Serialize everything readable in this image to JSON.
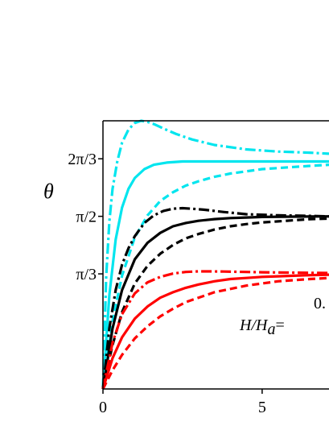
{
  "chart_data": {
    "type": "line",
    "ylabel": "θ",
    "xlabel": "",
    "xlim": [
      0,
      7.1
    ],
    "ylim": [
      0,
      2.44
    ],
    "x_ticks": [
      {
        "value": 0,
        "label": "0"
      },
      {
        "value": 5,
        "label": "5"
      }
    ],
    "y_ticks": [
      {
        "value": 1.0472,
        "label": "π/3"
      },
      {
        "value": 1.5708,
        "label": "π/2"
      },
      {
        "value": 2.0944,
        "label": "2π/3"
      }
    ],
    "annotations": {
      "ratio_label": "H/H",
      "ratio_subscript": "a",
      "ratio_equals": "=",
      "partial_value": "0."
    },
    "colors": {
      "cyan": "#00e5ee",
      "black": "#000000",
      "red": "#ff0000"
    },
    "series": [
      {
        "color": "cyan",
        "style": "dashdot",
        "x": [
          0,
          0.1,
          0.2,
          0.3,
          0.45,
          0.6,
          0.8,
          1.0,
          1.2,
          1.4,
          1.6,
          1.9,
          2.3,
          2.8,
          3.5,
          4.5,
          5.5,
          6.5,
          7.1
        ],
        "y": [
          0,
          1.02,
          1.52,
          1.82,
          2.07,
          2.24,
          2.36,
          2.42,
          2.44,
          2.43,
          2.41,
          2.37,
          2.32,
          2.27,
          2.22,
          2.18,
          2.16,
          2.15,
          2.14
        ]
      },
      {
        "color": "cyan",
        "style": "solid",
        "x": [
          0,
          0.2,
          0.4,
          0.6,
          0.8,
          1.0,
          1.3,
          1.6,
          2.0,
          2.5,
          3.0,
          4.0,
          5.0,
          6.0,
          7.1
        ],
        "y": [
          0,
          0.85,
          1.36,
          1.65,
          1.82,
          1.92,
          2.0,
          2.04,
          2.06,
          2.07,
          2.07,
          2.07,
          2.07,
          2.07,
          2.07
        ]
      },
      {
        "color": "cyan",
        "style": "dashed",
        "x": [
          0,
          0.3,
          0.6,
          1.0,
          1.4,
          1.8,
          2.2,
          2.6,
          3.0,
          3.5,
          4.0,
          4.5,
          5.0,
          5.5,
          6.0,
          6.5,
          7.1
        ],
        "y": [
          0,
          0.62,
          1.03,
          1.38,
          1.58,
          1.71,
          1.79,
          1.85,
          1.89,
          1.93,
          1.96,
          1.98,
          2.0,
          2.01,
          2.02,
          2.03,
          2.04
        ]
      },
      {
        "color": "black",
        "style": "dashdot",
        "x": [
          0,
          0.2,
          0.4,
          0.6,
          0.8,
          1.0,
          1.3,
          1.6,
          1.9,
          2.2,
          2.5,
          2.8,
          3.2,
          3.8,
          4.5,
          5.5,
          6.5,
          7.1
        ],
        "y": [
          0,
          0.55,
          0.9,
          1.13,
          1.28,
          1.39,
          1.51,
          1.58,
          1.62,
          1.64,
          1.645,
          1.64,
          1.63,
          1.61,
          1.59,
          1.58,
          1.575,
          1.57
        ]
      },
      {
        "color": "black",
        "style": "solid",
        "x": [
          0,
          0.3,
          0.6,
          1.0,
          1.4,
          1.8,
          2.2,
          2.6,
          3.0,
          3.5,
          4.0,
          4.5,
          5.0,
          6.0,
          7.1
        ],
        "y": [
          0,
          0.55,
          0.9,
          1.18,
          1.33,
          1.42,
          1.48,
          1.51,
          1.53,
          1.545,
          1.555,
          1.56,
          1.565,
          1.568,
          1.57
        ]
      },
      {
        "color": "black",
        "style": "dashed",
        "x": [
          0,
          0.3,
          0.6,
          1.0,
          1.4,
          1.8,
          2.2,
          2.6,
          3.0,
          3.5,
          4.0,
          4.5,
          5.0,
          5.5,
          6.0,
          6.5,
          7.1
        ],
        "y": [
          0,
          0.4,
          0.7,
          0.96,
          1.12,
          1.23,
          1.31,
          1.37,
          1.41,
          1.45,
          1.48,
          1.5,
          1.515,
          1.525,
          1.535,
          1.545,
          1.55
        ]
      },
      {
        "color": "red",
        "style": "dashdot",
        "x": [
          0,
          0.3,
          0.6,
          1.0,
          1.4,
          1.8,
          2.2,
          2.6,
          3.0,
          3.4,
          3.8,
          4.2,
          5.0,
          6.0,
          7.1
        ],
        "y": [
          0,
          0.42,
          0.68,
          0.87,
          0.97,
          1.02,
          1.05,
          1.065,
          1.07,
          1.07,
          1.068,
          1.066,
          1.062,
          1.058,
          1.055
        ]
      },
      {
        "color": "red",
        "style": "solid",
        "x": [
          0,
          0.3,
          0.6,
          1.0,
          1.4,
          1.8,
          2.2,
          2.6,
          3.0,
          3.5,
          4.0,
          4.5,
          5.0,
          5.5,
          6.0,
          6.5,
          7.1
        ],
        "y": [
          0,
          0.28,
          0.47,
          0.64,
          0.75,
          0.83,
          0.88,
          0.92,
          0.95,
          0.98,
          1.0,
          1.01,
          1.02,
          1.025,
          1.03,
          1.035,
          1.04
        ]
      },
      {
        "color": "red",
        "style": "dashed",
        "x": [
          0,
          0.3,
          0.6,
          1.0,
          1.4,
          1.8,
          2.2,
          2.6,
          3.0,
          3.5,
          4.0,
          4.5,
          5.0,
          5.5,
          6.0,
          6.5,
          7.1
        ],
        "y": [
          0,
          0.17,
          0.31,
          0.46,
          0.57,
          0.66,
          0.73,
          0.79,
          0.83,
          0.88,
          0.91,
          0.94,
          0.96,
          0.98,
          0.99,
          1.0,
          1.01
        ]
      }
    ]
  }
}
